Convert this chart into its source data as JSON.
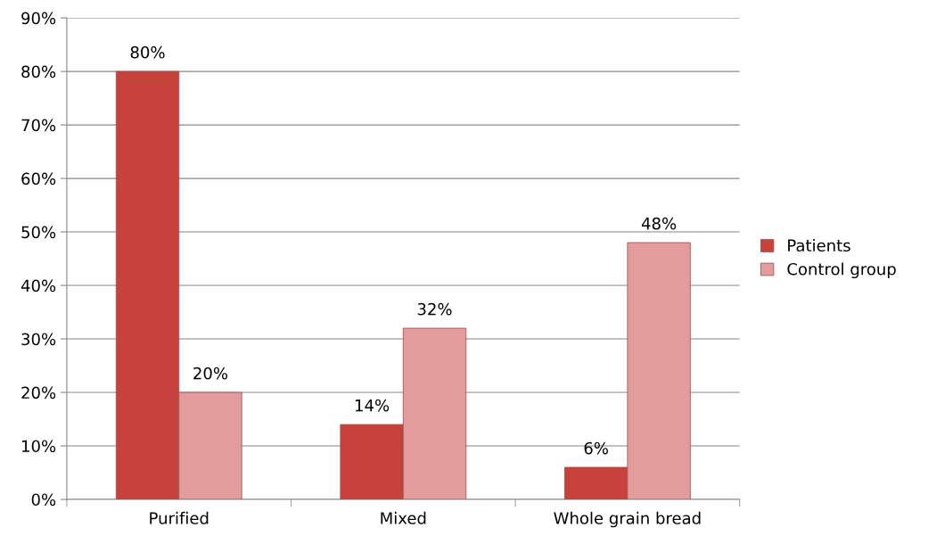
{
  "chart_data": {
    "type": "bar",
    "categories": [
      "Purified",
      "Mixed",
      "Whole grain bread"
    ],
    "series": [
      {
        "name": "Patients",
        "color": "#c8423c",
        "values": [
          80,
          14,
          6
        ],
        "value_labels": [
          "80%",
          "14%",
          "6%"
        ]
      },
      {
        "name": "Control group",
        "color": "#e39c9c",
        "values": [
          20,
          32,
          48
        ],
        "value_labels": [
          "20%",
          "32%",
          "48%"
        ]
      }
    ],
    "ylim": [
      0,
      90
    ],
    "yticks": [
      {
        "value": 0,
        "label": "0%"
      },
      {
        "value": 10,
        "label": "10%"
      },
      {
        "value": 20,
        "label": "20%"
      },
      {
        "value": 30,
        "label": "30%"
      },
      {
        "value": 40,
        "label": "40%"
      },
      {
        "value": 50,
        "label": "50%"
      },
      {
        "value": 60,
        "label": "60%"
      },
      {
        "value": 70,
        "label": "70%"
      },
      {
        "value": 80,
        "label": "80%"
      },
      {
        "value": 90,
        "label": "90%"
      }
    ],
    "grid": "y",
    "legend": "right"
  }
}
